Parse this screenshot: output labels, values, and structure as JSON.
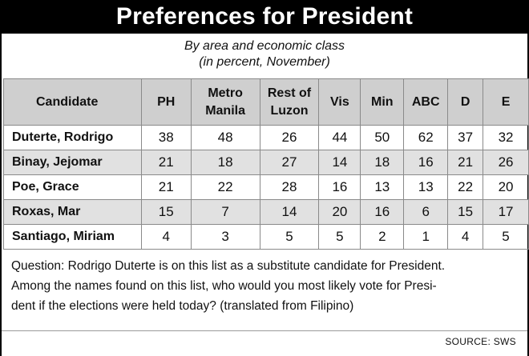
{
  "title": "Preferences for President",
  "subtitle_line1": "By area and economic class",
  "subtitle_line2": "(in percent, November)",
  "colors": {
    "title_bg": "#000000",
    "header_bg": "#cfcfcf",
    "shaded_row": "#e1e1e1"
  },
  "chart_data": {
    "type": "table",
    "columns": [
      {
        "label": "Candidate"
      },
      {
        "label": "PH"
      },
      {
        "label_line1": "Metro",
        "label_line2": "Manila"
      },
      {
        "label_line1": "Rest of",
        "label_line2": "Luzon"
      },
      {
        "label": "Vis"
      },
      {
        "label": "Min"
      },
      {
        "label": "ABC"
      },
      {
        "label": "D"
      },
      {
        "label": "E"
      }
    ],
    "rows": [
      {
        "name": "Duterte, Rodrigo",
        "values": [
          38,
          48,
          26,
          44,
          50,
          62,
          37,
          32
        ]
      },
      {
        "name": "Binay, Jejomar",
        "values": [
          21,
          18,
          27,
          14,
          18,
          16,
          21,
          26
        ]
      },
      {
        "name": "Poe, Grace",
        "values": [
          21,
          22,
          28,
          16,
          13,
          13,
          22,
          20
        ]
      },
      {
        "name": "Roxas, Mar",
        "values": [
          15,
          7,
          14,
          20,
          16,
          6,
          15,
          17
        ]
      },
      {
        "name": "Santiago, Miriam",
        "values": [
          4,
          3,
          5,
          5,
          2,
          1,
          4,
          5
        ]
      }
    ]
  },
  "question_line1": "Question: Rodrigo Duterte is on this list as a substitute candidate for President.",
  "question_line2": "Among the names found on this list, who would you most likely vote for Presi-",
  "question_line3": "dent if the elections were held today? (translated from Filipino)",
  "source": "SOURCE: SWS"
}
